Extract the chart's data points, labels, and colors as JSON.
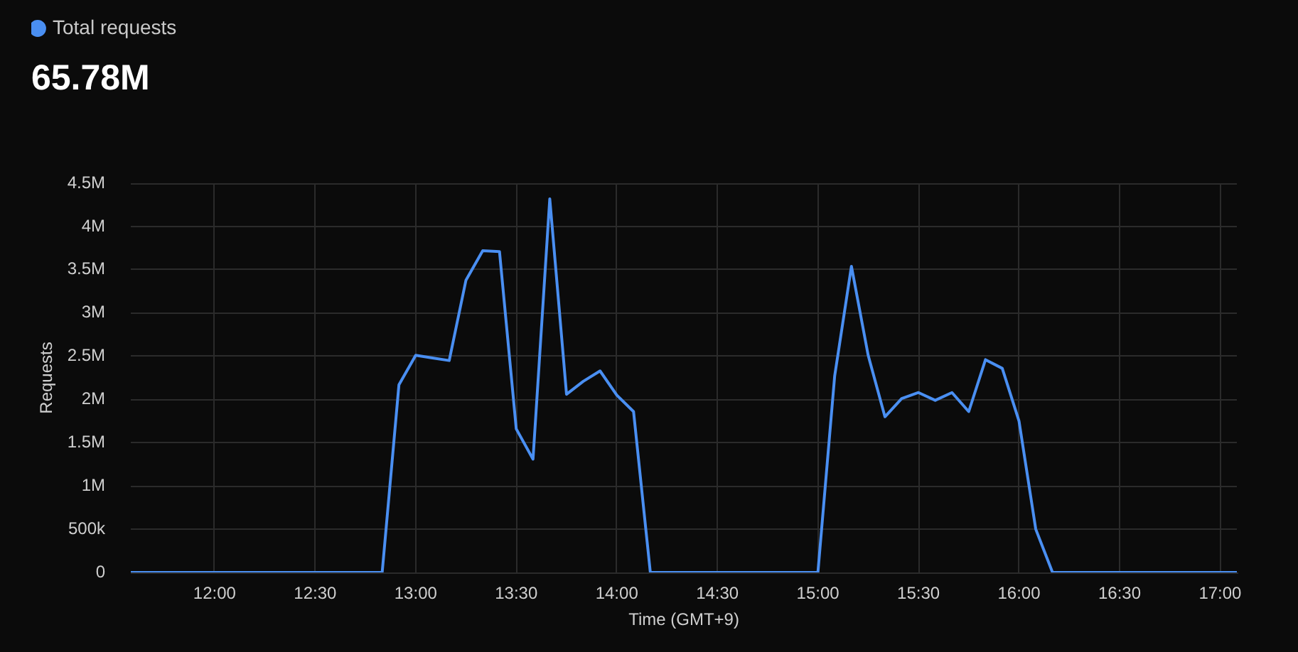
{
  "chart_data": {
    "type": "line",
    "title": "65.78M",
    "xlabel": "Time (GMT+9)",
    "ylabel": "Requests",
    "x": [
      11.5833,
      11.6667,
      11.75,
      11.8333,
      11.9167,
      12,
      12.0833,
      12.1667,
      12.25,
      12.3333,
      12.4167,
      12.5,
      12.5833,
      12.6667,
      12.75,
      12.8333,
      12.9167,
      13,
      13.0833,
      13.1667,
      13.25,
      13.3333,
      13.4167,
      13.5,
      13.5833,
      13.6667,
      13.75,
      13.8333,
      13.9167,
      14,
      14.0833,
      14.1667,
      14.25,
      14.3333,
      14.4167,
      14.5,
      14.5833,
      14.6667,
      14.75,
      14.8333,
      14.9167,
      15,
      15.0833,
      15.1667,
      15.25,
      15.3333,
      15.4167,
      15.5,
      15.5833,
      15.6667,
      15.75,
      15.8333,
      15.9167,
      16,
      16.0833,
      16.1667,
      16.25,
      16.3333,
      16.4167,
      16.5,
      16.5833,
      16.6667,
      16.75,
      16.8333,
      16.9167,
      17,
      17.0833
    ],
    "series": [
      {
        "name": "Total requests",
        "color": "#4a8ff2",
        "values": [
          0,
          0,
          0,
          0,
          0,
          0,
          0,
          0,
          0,
          0,
          0,
          0,
          0,
          0,
          0,
          0,
          2170000,
          2510000,
          2480000,
          2450000,
          3380000,
          3720000,
          3710000,
          1660000,
          1310000,
          4320000,
          2060000,
          2210000,
          2330000,
          2050000,
          1860000,
          0,
          0,
          0,
          0,
          0,
          0,
          0,
          0,
          0,
          0,
          0,
          2270000,
          3540000,
          2510000,
          1800000,
          2010000,
          2080000,
          1990000,
          2080000,
          1860000,
          2460000,
          2360000,
          1750000,
          500000,
          0,
          0,
          0,
          0,
          0,
          0,
          0,
          0,
          0,
          0,
          0,
          0
        ]
      }
    ],
    "xlim": [
      11.5833,
      17.0833
    ],
    "xticks": [
      {
        "value": 12,
        "label": "12:00"
      },
      {
        "value": 12.5,
        "label": "12:30"
      },
      {
        "value": 13,
        "label": "13:00"
      },
      {
        "value": 13.5,
        "label": "13:30"
      },
      {
        "value": 14,
        "label": "14:00"
      },
      {
        "value": 14.5,
        "label": "14:30"
      },
      {
        "value": 15,
        "label": "15:00"
      },
      {
        "value": 15.5,
        "label": "15:30"
      },
      {
        "value": 16,
        "label": "16:00"
      },
      {
        "value": 16.5,
        "label": "16:30"
      },
      {
        "value": 17,
        "label": "17:00"
      }
    ],
    "ylim": [
      0,
      4500000
    ],
    "yticks": [
      0,
      {
        "value": 500000,
        "label": "500k"
      },
      {
        "value": 1000000,
        "label": "1M"
      },
      {
        "value": 1500000,
        "label": "1.5M"
      },
      {
        "value": 2000000,
        "label": "2M"
      },
      {
        "value": 2500000,
        "label": "2.5M"
      },
      {
        "value": 3000000,
        "label": "3M"
      },
      {
        "value": 3500000,
        "label": "3.5M"
      },
      {
        "value": 4000000,
        "label": "4M"
      },
      {
        "value": 4500000,
        "label": "4.5M"
      }
    ],
    "grid": true,
    "legend": "top left",
    "marker": "none",
    "line_style": "solid"
  }
}
